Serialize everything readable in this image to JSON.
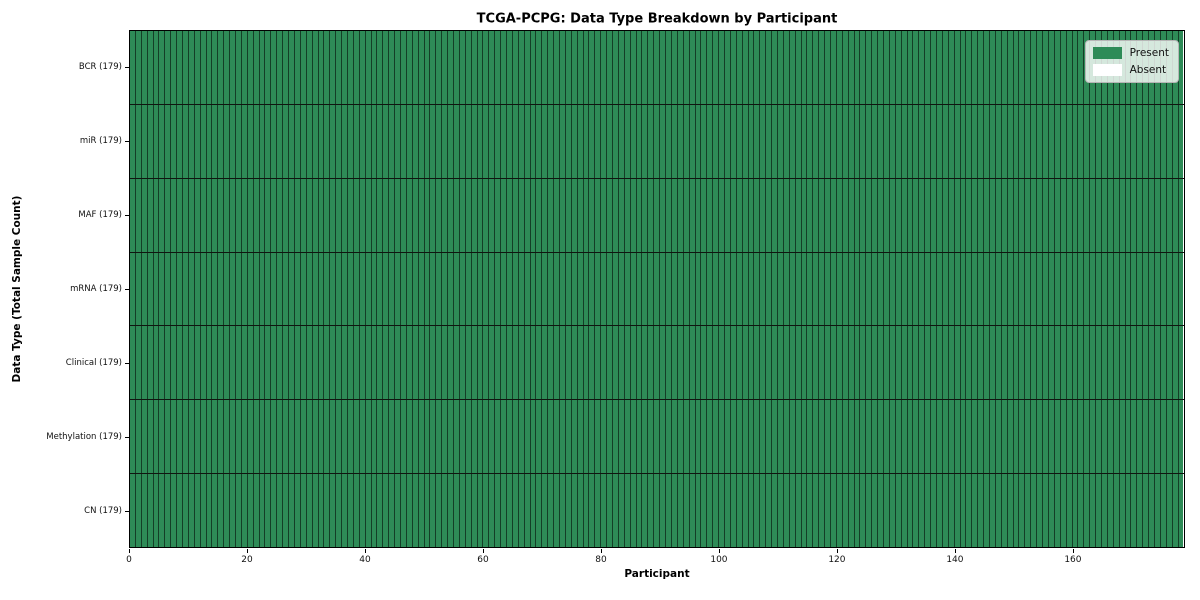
{
  "chart_data": {
    "type": "heatmap",
    "title": "TCGA-PCPG: Data Type Breakdown by Participant",
    "xlabel": "Participant",
    "ylabel": "Data Type (Total Sample Count)",
    "x_range": [
      0,
      179
    ],
    "x_ticks": [
      0,
      20,
      40,
      60,
      80,
      100,
      120,
      140,
      160
    ],
    "n_participants": 179,
    "rows": [
      {
        "label": "BCR (179)",
        "data_type": "BCR",
        "total_samples": 179,
        "present_count": 179,
        "absent_count": 0
      },
      {
        "label": "miR (179)",
        "data_type": "miR",
        "total_samples": 179,
        "present_count": 179,
        "absent_count": 0
      },
      {
        "label": "MAF (179)",
        "data_type": "MAF",
        "total_samples": 179,
        "present_count": 179,
        "absent_count": 0
      },
      {
        "label": "mRNA (179)",
        "data_type": "mRNA",
        "total_samples": 179,
        "present_count": 179,
        "absent_count": 0
      },
      {
        "label": "Clinical (179)",
        "data_type": "Clinical",
        "total_samples": 179,
        "present_count": 179,
        "absent_count": 0
      },
      {
        "label": "Methylation (179)",
        "data_type": "Methylation",
        "total_samples": 179,
        "present_count": 179,
        "absent_count": 0
      },
      {
        "label": "CN (179)",
        "data_type": "CN",
        "total_samples": 179,
        "present_count": 179,
        "absent_count": 0
      }
    ],
    "legend": {
      "position": "upper-right",
      "entries": [
        {
          "label": "Present",
          "color": "#2e8b57"
        },
        {
          "label": "Absent",
          "color": "#ffffff"
        }
      ]
    },
    "colors": {
      "present": "#2e8b57",
      "absent": "#ffffff",
      "cell_edge": "#000000",
      "spine": "#000000",
      "background": "#ffffff"
    }
  }
}
